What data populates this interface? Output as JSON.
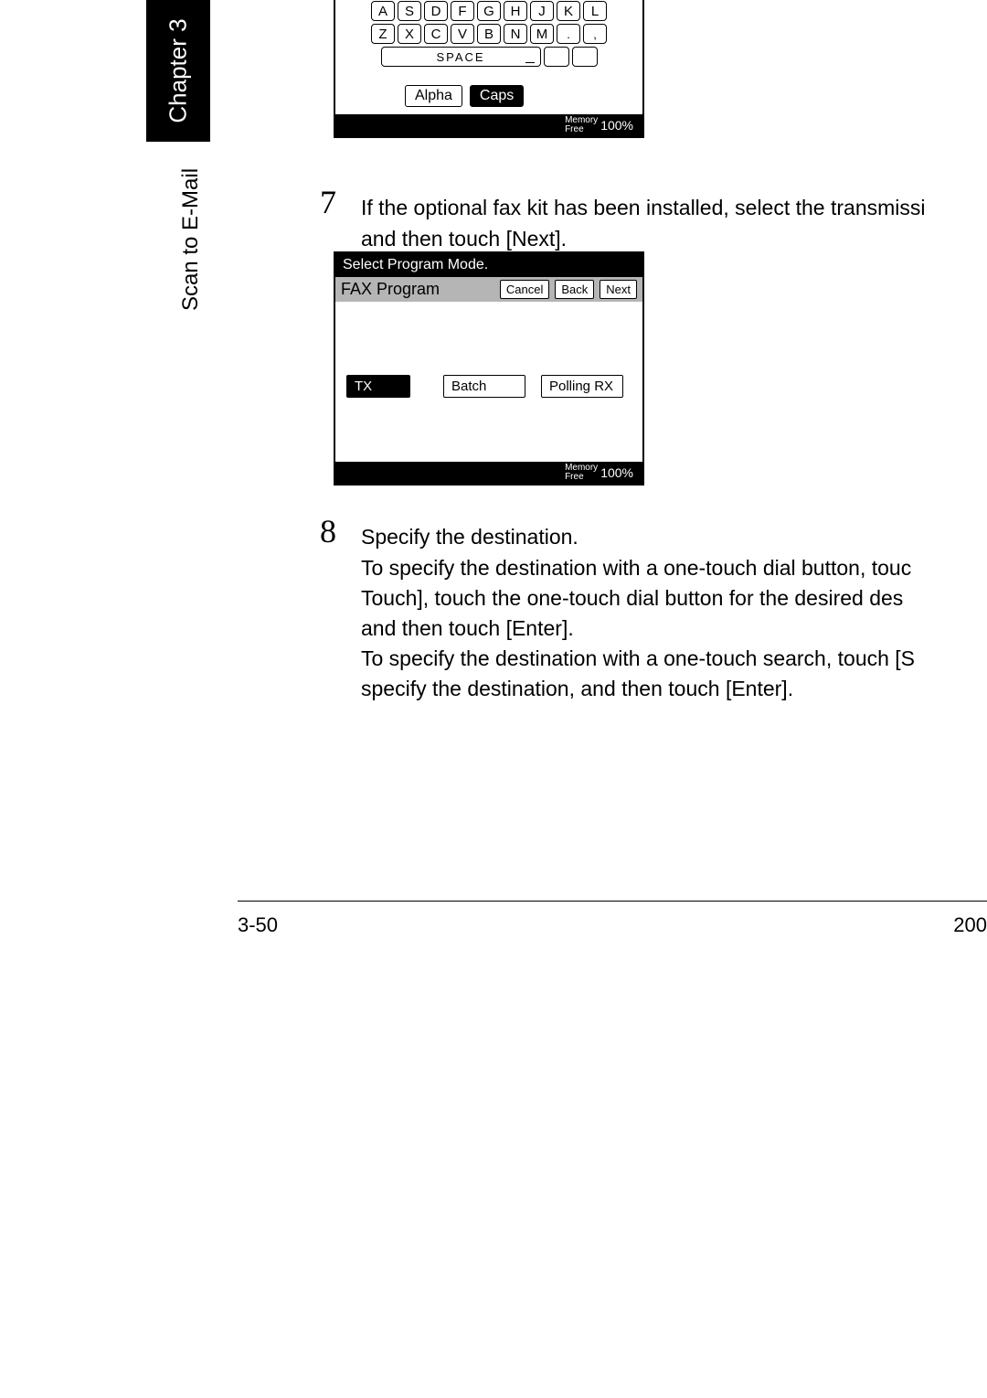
{
  "sidebar": {
    "chapter": "Chapter 3",
    "section": "Scan to E-Mail"
  },
  "keyboard": {
    "row2": [
      "A",
      "S",
      "D",
      "F",
      "G",
      "H",
      "J",
      "K",
      "L"
    ],
    "row3": [
      "Z",
      "X",
      "C",
      "V",
      "B",
      "N",
      "M",
      ".",
      ","
    ],
    "space": "SPACE",
    "alpha": "Alpha",
    "caps": "Caps",
    "mem_label_top": "Memory",
    "mem_label_bot": "Free",
    "mem_value": "100%"
  },
  "step7": {
    "num": "7",
    "text": "If the optional fax kit has been installed, select the transmissi\nand then touch [Next]."
  },
  "fax": {
    "header": "Select Program Mode.",
    "title": "FAX Program",
    "btn_cancel": "Cancel",
    "btn_back": "Back",
    "btn_next": "Next",
    "opt_tx": "TX",
    "opt_batch": "Batch",
    "opt_prx": "Polling RX",
    "mem_label_top": "Memory",
    "mem_label_bot": "Free",
    "mem_value": "100%"
  },
  "step8": {
    "num": "8",
    "line1": "Specify the destination.",
    "body": "To specify the destination with a one-touch dial button, touc\nTouch], touch the one-touch dial button for the desired des\nand then touch [Enter].\nTo specify the destination with a one-touch search, touch [S\nspecify the destination, and then touch [Enter]."
  },
  "footer": {
    "page_left": "3-50",
    "page_right": "200"
  }
}
